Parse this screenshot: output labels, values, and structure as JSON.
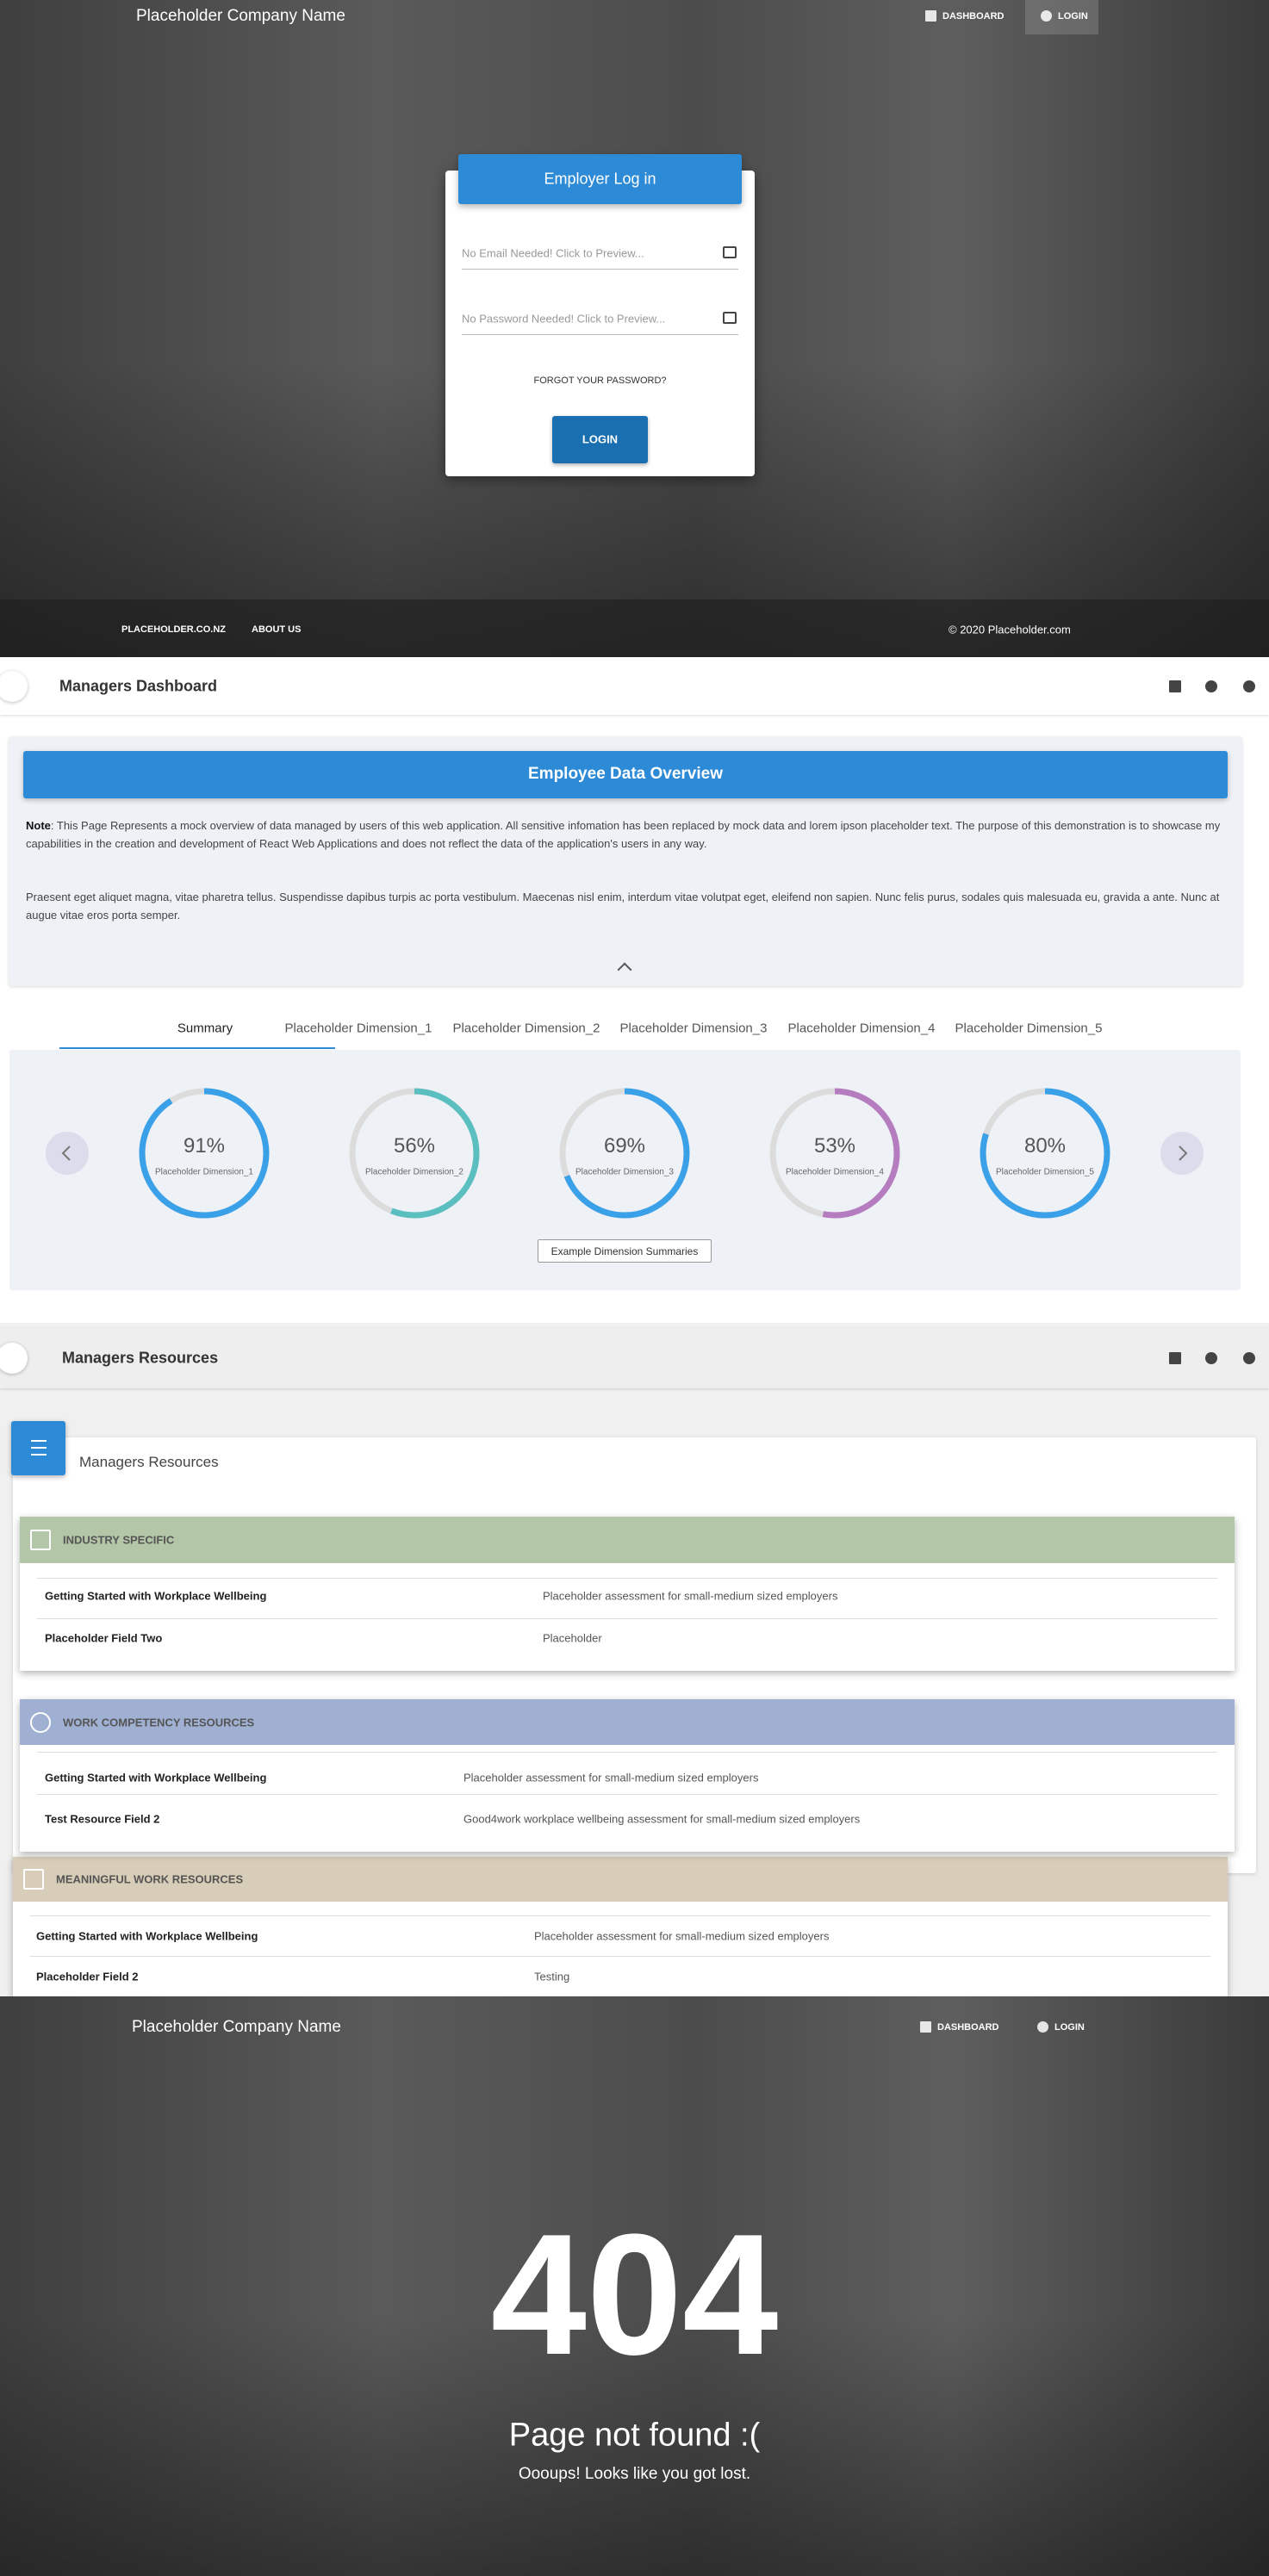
{
  "login_page": {
    "brand": "Placeholder Company Name",
    "nav": [
      "DASHBOARD",
      "LOGIN"
    ],
    "card_title": "Employer Log in",
    "email_placeholder": "No Email Needed! Click to Preview...",
    "password_placeholder": "No Password Needed! Click to Preview...",
    "forgot": "FORGOT YOUR PASSWORD?",
    "login_button": "LOGIN",
    "footer_links": [
      "PLACEHOLDER.CO.NZ",
      "ABOUT US"
    ],
    "copyright": "© 2020 Placeholder.com"
  },
  "dashboard": {
    "title": "Managers Dashboard",
    "panel_title": "Employee Data Overview",
    "note_label": "Note",
    "note_text": ": This Page Represents a mock overview of data managed by users of this web application. All sensitive infomation has been replaced by mock data and lorem ipson placeholder text. The purpose of this demonstration is to showcase my capabilities in the creation and development of React Web Applications and does not reflect the data of the application's users in any way.",
    "paragraph": "Praesent eget aliquet magna, vitae pharetra tellus. Suspendisse dapibus turpis ac porta vestibulum. Maecenas nisl enim, interdum vitae volutpat eget, eleifend non sapien. Nunc felis purus, sodales quis malesuada eu, gravida a ante. Nunc at augue vitae eros porta semper.",
    "tabs": [
      "Summary",
      "Placeholder Dimension_1",
      "Placeholder Dimension_2",
      "Placeholder Dimension_3",
      "Placeholder Dimension_4",
      "Placeholder Dimension_5"
    ],
    "gauges": [
      {
        "value": 91,
        "label": "91%",
        "name": "Placeholder Dimension_1",
        "color": "#3aa0e8"
      },
      {
        "value": 56,
        "label": "56%",
        "name": "Placeholder Dimension_2",
        "color": "#5bbfc0"
      },
      {
        "value": 69,
        "label": "69%",
        "name": "Placeholder Dimension_3",
        "color": "#3aa0e8"
      },
      {
        "value": 53,
        "label": "53%",
        "name": "Placeholder Dimension_4",
        "color": "#b57cc0"
      },
      {
        "value": 80,
        "label": "80%",
        "name": "Placeholder Dimension_5",
        "color": "#3aa0e8"
      }
    ],
    "summary_button": "Example Dimension Summaries"
  },
  "resources": {
    "title": "Managers Resources",
    "card_title": "Managers Resources",
    "sections": [
      {
        "title": "INDUSTRY SPECIFIC",
        "color": "#b3c6a7",
        "rows": [
          [
            "Getting Started with Workplace Wellbeing",
            "Placeholder assessment for small-medium sized employers"
          ],
          [
            "Placeholder Field Two",
            "Placeholder"
          ]
        ]
      },
      {
        "title": "WORK COMPETENCY RESOURCES",
        "color": "#9fb0d3",
        "rows": [
          [
            "Getting Started with Workplace Wellbeing",
            "Placeholder assessment for small-medium sized employers"
          ],
          [
            "Test Resource Field 2",
            "Good4work workplace wellbeing assessment for small-medium sized employers"
          ]
        ]
      },
      {
        "title": "MEANINGFUL WORK RESOURCES",
        "color": "#d8cdb8",
        "rows": [
          [
            "Getting Started with Workplace Wellbeing",
            "Placeholder assessment for small-medium sized employers"
          ],
          [
            "Placeholder Field 2",
            "Testing"
          ]
        ]
      }
    ]
  },
  "not_found": {
    "brand": "Placeholder Company Name",
    "nav": [
      "DASHBOARD",
      "LOGIN"
    ],
    "code": "404",
    "heading": "Page not found :(",
    "message": "Oooups! Looks like you got lost."
  }
}
